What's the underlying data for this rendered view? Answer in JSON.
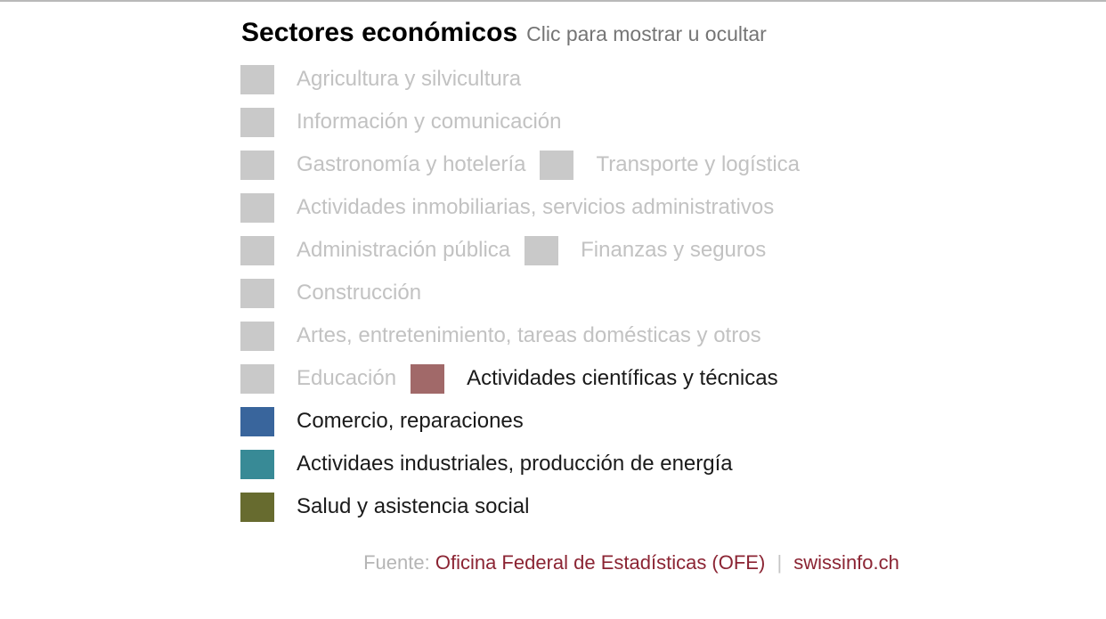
{
  "header": {
    "title": "Sectores económicos",
    "subtitle": "Clic para mostrar u ocultar"
  },
  "legend": {
    "inactive_swatch_color": "#c9c9c9",
    "rows": [
      [
        {
          "label": "Agricultura y silvicultura",
          "active": false
        }
      ],
      [
        {
          "label": "Información y comunicación",
          "active": false
        }
      ],
      [
        {
          "label": "Gastronomía y hotelería",
          "active": false
        },
        {
          "label": "Transporte y logística",
          "active": false
        }
      ],
      [
        {
          "label": "Actividades inmobiliarias, servicios administrativos",
          "active": false
        }
      ],
      [
        {
          "label": "Administración pública",
          "active": false
        },
        {
          "label": "Finanzas y seguros",
          "active": false
        }
      ],
      [
        {
          "label": "Construcción",
          "active": false
        }
      ],
      [
        {
          "label": "Artes, entretenimiento, tareas domésticas y otros",
          "active": false
        }
      ],
      [
        {
          "label": "Educación",
          "active": false
        },
        {
          "label": "Actividades científicas y técnicas",
          "active": true,
          "color": "#a16969"
        }
      ],
      [
        {
          "label": "Comercio, reparaciones",
          "active": true,
          "color": "#39659c"
        }
      ],
      [
        {
          "label": "Actividaes industriales, producción de energía",
          "active": true,
          "color": "#388a96"
        }
      ],
      [
        {
          "label": "Salud y asistencia social",
          "active": true,
          "color": "#676b2f"
        }
      ]
    ]
  },
  "footer": {
    "prefix": "Fuente:",
    "source_link": "Oficina Federal de Estadísticas (OFE)",
    "separator": "|",
    "site_link": "swissinfo.ch"
  },
  "colors": {
    "active_text": "#1a1a1a",
    "inactive_text": "#c2c2c2",
    "subtitle_text": "#757575",
    "footer_link": "#8b2433",
    "footer_prefix": "#b5b5b5",
    "top_border": "#b9b9b9"
  }
}
